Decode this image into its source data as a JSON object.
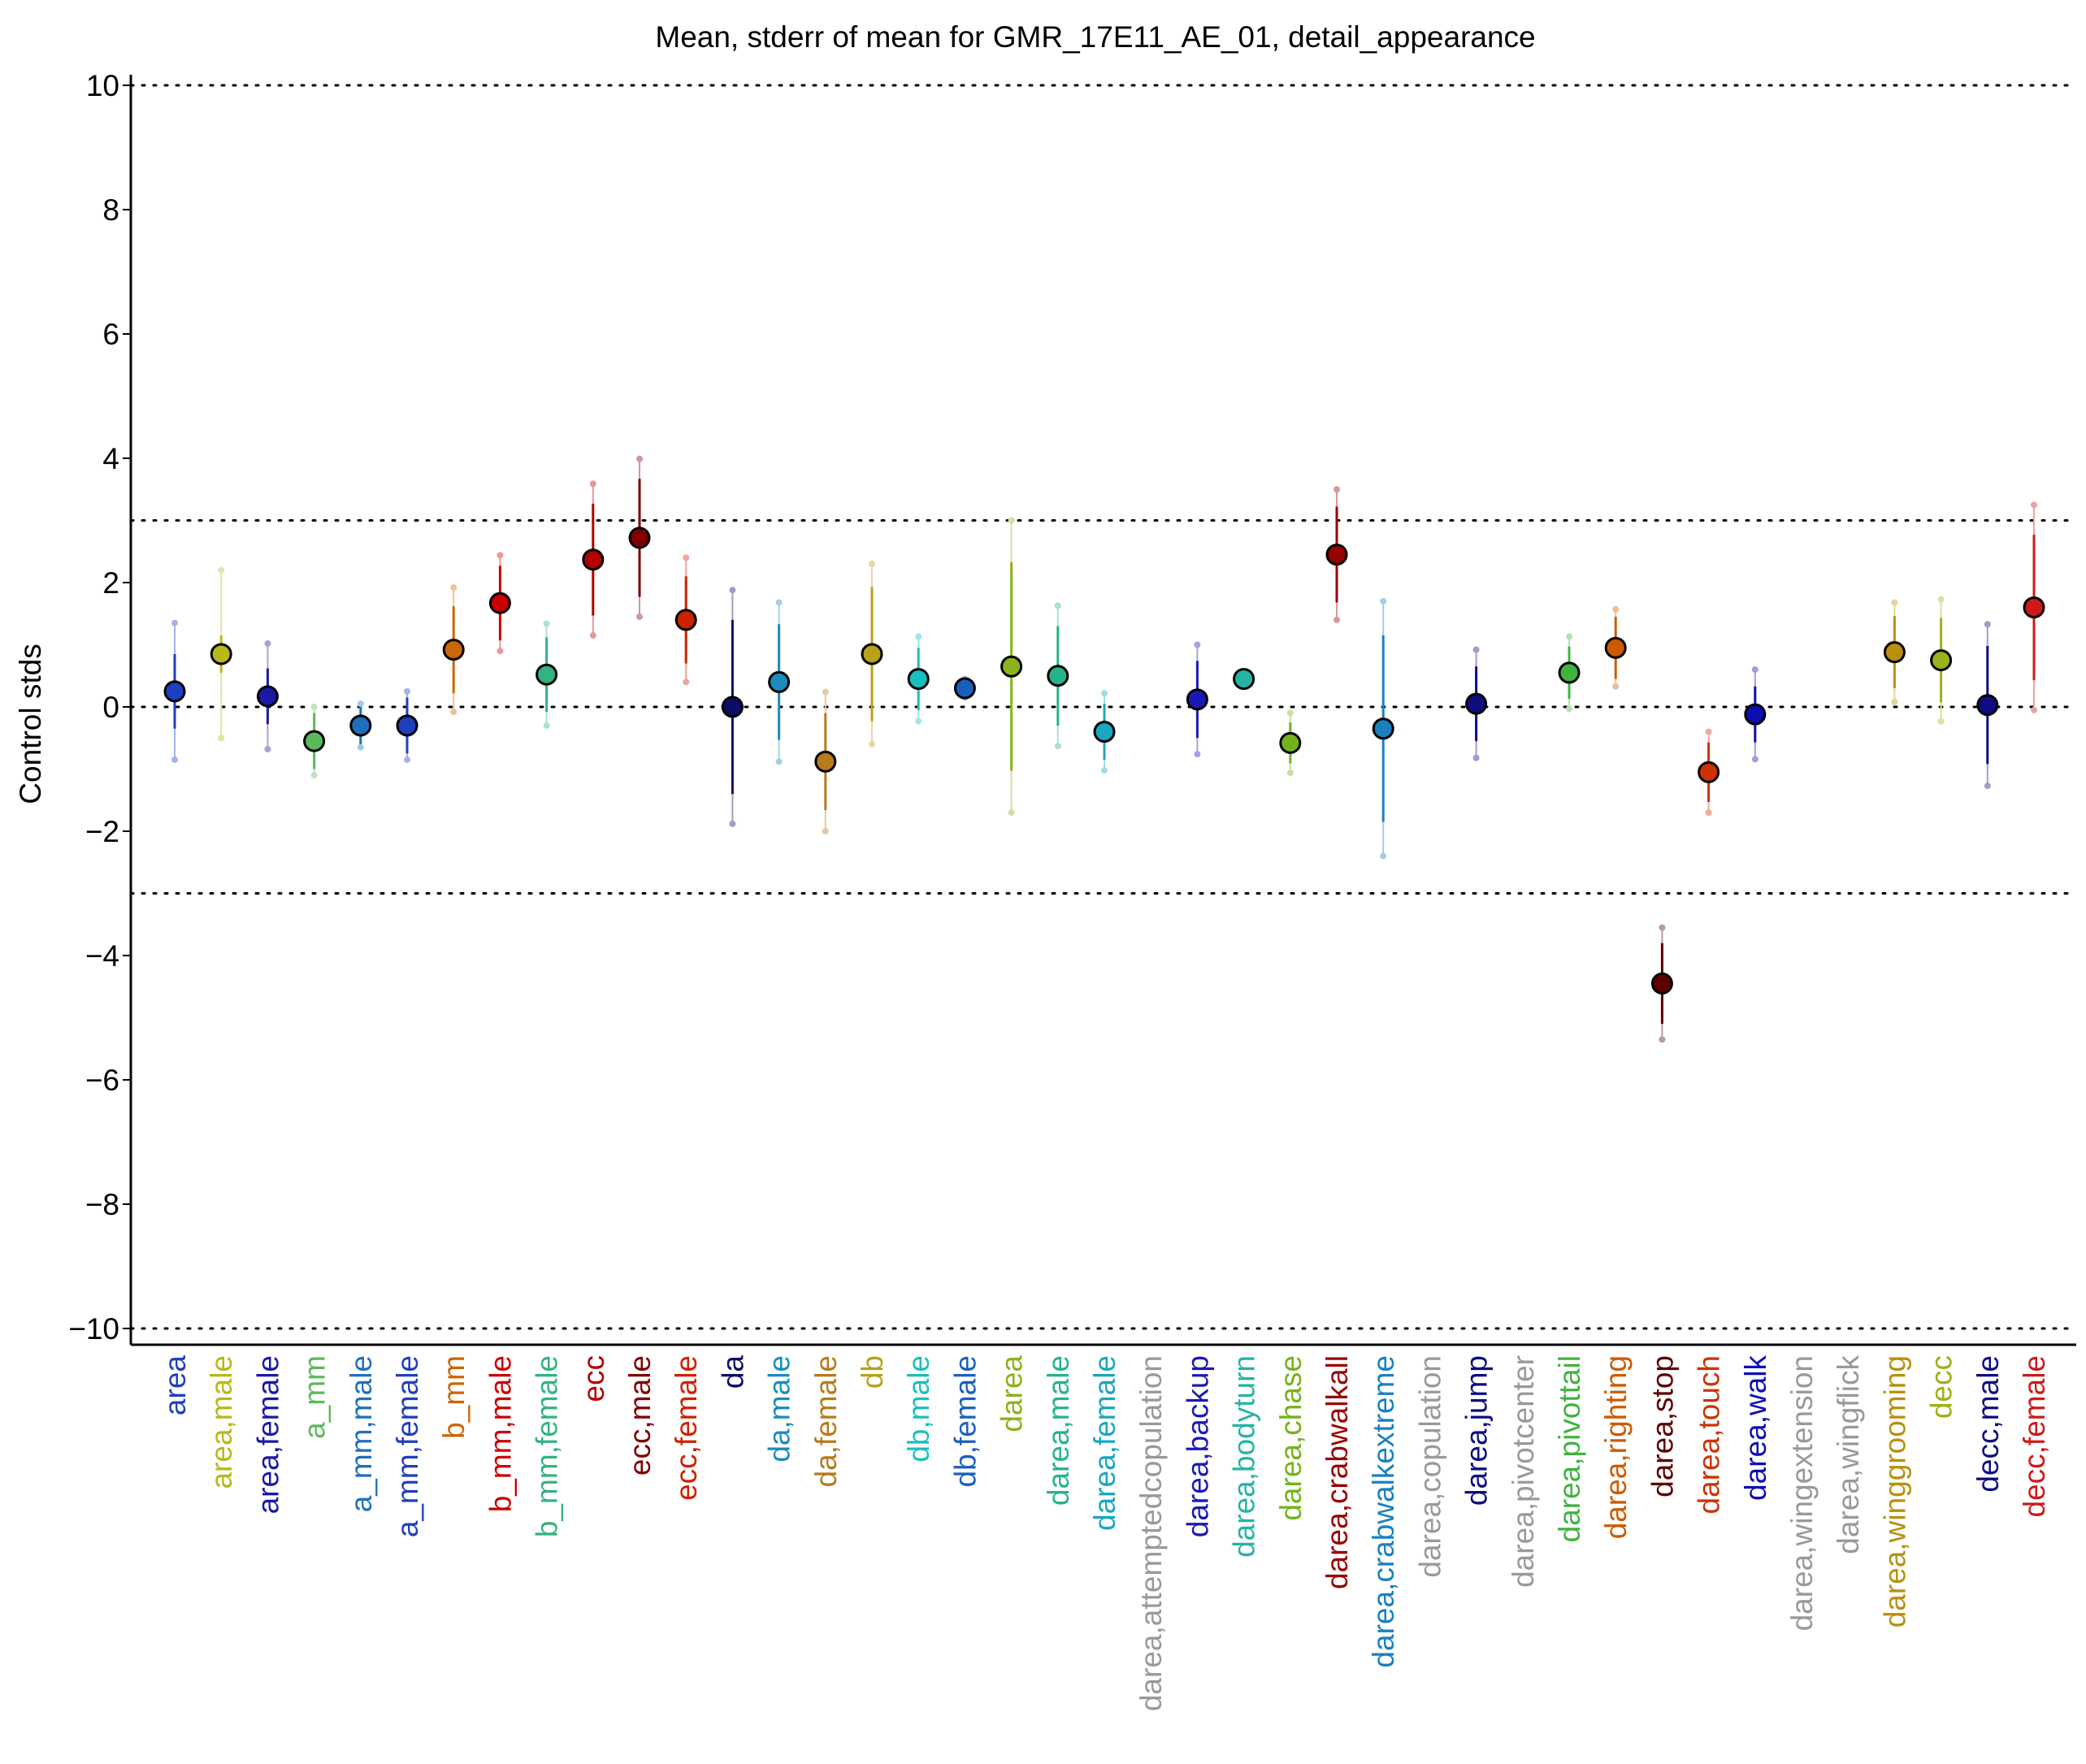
{
  "chart_data": {
    "type": "scatter",
    "title": "Mean, stderr of mean for GMR_17E11_AE_01, detail_appearance",
    "ylabel": "Control stds",
    "xlabel": "",
    "ylim": [
      -10.2,
      10.2
    ],
    "yticks": [
      10,
      8,
      6,
      4,
      2,
      0,
      -2,
      -4,
      -6,
      -8,
      -10
    ],
    "ytick_labels": [
      "10",
      "8",
      "6",
      "4",
      "2",
      "0",
      "−2",
      "−4",
      "−6",
      "−8",
      "−10"
    ],
    "reference_lines": [
      10,
      3,
      0,
      -3,
      -10
    ],
    "grid": false,
    "categories": [
      {
        "label": "area",
        "color": "#1f3fbf",
        "mean": 0.25,
        "se": 0.6,
        "whisker": 1.1
      },
      {
        "label": "area,male",
        "color": "#b8b81a",
        "mean": 0.85,
        "se": 0.3,
        "whisker": 1.35
      },
      {
        "label": "area,female",
        "color": "#1a1aa6",
        "mean": 0.17,
        "se": 0.45,
        "whisker": 0.85
      },
      {
        "label": "a_mm",
        "color": "#5cb85c",
        "mean": -0.55,
        "se": 0.45,
        "whisker": 0.55
      },
      {
        "label": "a_mm,male",
        "color": "#1f6fbf",
        "mean": -0.3,
        "se": 0.3,
        "whisker": 0.35
      },
      {
        "label": "a_mm,female",
        "color": "#1f3fbf",
        "mean": -0.3,
        "se": 0.45,
        "whisker": 0.55
      },
      {
        "label": "b_mm",
        "color": "#cc6600",
        "mean": 0.92,
        "se": 0.7,
        "whisker": 1.0
      },
      {
        "label": "b_mm,male",
        "color": "#cc0000",
        "mean": 1.67,
        "se": 0.6,
        "whisker": 0.77
      },
      {
        "label": "b_mm,female",
        "color": "#33b380",
        "mean": 0.52,
        "se": 0.6,
        "whisker": 0.82
      },
      {
        "label": "ecc",
        "color": "#b30000",
        "mean": 2.37,
        "se": 0.9,
        "whisker": 1.22
      },
      {
        "label": "ecc,male",
        "color": "#800000",
        "mean": 2.72,
        "se": 0.95,
        "whisker": 1.27
      },
      {
        "label": "ecc,female",
        "color": "#cc2200",
        "mean": 1.4,
        "se": 0.7,
        "whisker": 1.0
      },
      {
        "label": "da",
        "color": "#0d0d66",
        "mean": 0.0,
        "se": 1.4,
        "whisker": 1.88
      },
      {
        "label": "da,male",
        "color": "#1a8cbf",
        "mean": 0.4,
        "se": 0.93,
        "whisker": 1.28
      },
      {
        "label": "da,female",
        "color": "#b87a1a",
        "mean": -0.88,
        "se": 0.78,
        "whisker": 1.12
      },
      {
        "label": "db",
        "color": "#b8a21a",
        "mean": 0.85,
        "se": 1.08,
        "whisker": 1.45
      },
      {
        "label": "db,male",
        "color": "#1abfbf",
        "mean": 0.45,
        "se": 0.5,
        "whisker": 0.68
      },
      {
        "label": "db,female",
        "color": "#1a5fbf",
        "mean": 0.3,
        "se": 0.12,
        "whisker": 0.15
      },
      {
        "label": "darea",
        "color": "#8cb31a",
        "mean": 0.65,
        "se": 1.68,
        "whisker": 2.35
      },
      {
        "label": "darea,male",
        "color": "#26b38c",
        "mean": 0.5,
        "se": 0.8,
        "whisker": 1.13
      },
      {
        "label": "darea,female",
        "color": "#1aa6bf",
        "mean": -0.4,
        "se": 0.45,
        "whisker": 0.62
      },
      {
        "label": "darea,attemptedcopulation",
        "color": "#999999",
        "mean": null,
        "se": null,
        "whisker": null
      },
      {
        "label": "darea,backup",
        "color": "#1a1ab3",
        "mean": 0.12,
        "se": 0.62,
        "whisker": 0.88
      },
      {
        "label": "darea,bodyturn",
        "color": "#26b3a6",
        "mean": 0.45,
        "se": 0.05,
        "whisker": 0.07
      },
      {
        "label": "darea,chase",
        "color": "#73b31a",
        "mean": -0.58,
        "se": 0.33,
        "whisker": 0.48
      },
      {
        "label": "darea,crabwalkall",
        "color": "#990000",
        "mean": 2.45,
        "se": 0.77,
        "whisker": 1.05
      },
      {
        "label": "darea,crabwalkextreme",
        "color": "#1a80bf",
        "mean": -0.35,
        "se": 1.5,
        "whisker": 2.05
      },
      {
        "label": "darea,copulation",
        "color": "#999999",
        "mean": null,
        "se": null,
        "whisker": null
      },
      {
        "label": "darea,jump",
        "color": "#0d0d80",
        "mean": 0.05,
        "se": 0.6,
        "whisker": 0.87
      },
      {
        "label": "darea,pivotcenter",
        "color": "#999999",
        "mean": null,
        "se": null,
        "whisker": null
      },
      {
        "label": "darea,pivottail",
        "color": "#40b340",
        "mean": 0.55,
        "se": 0.42,
        "whisker": 0.58
      },
      {
        "label": "darea,righting",
        "color": "#cc5a00",
        "mean": 0.95,
        "se": 0.5,
        "whisker": 0.62
      },
      {
        "label": "darea,stop",
        "color": "#5c0000",
        "mean": -4.45,
        "se": 0.65,
        "whisker": 0.9
      },
      {
        "label": "darea,touch",
        "color": "#cc3300",
        "mean": -1.05,
        "se": 0.48,
        "whisker": 0.65
      },
      {
        "label": "darea,walk",
        "color": "#0d0db3",
        "mean": -0.12,
        "se": 0.45,
        "whisker": 0.72
      },
      {
        "label": "darea,wingextension",
        "color": "#999999",
        "mean": null,
        "se": null,
        "whisker": null
      },
      {
        "label": "darea,wingflick",
        "color": "#999999",
        "mean": null,
        "se": null,
        "whisker": null
      },
      {
        "label": "darea,winggrooming",
        "color": "#b8900d",
        "mean": 0.88,
        "se": 0.58,
        "whisker": 0.8
      },
      {
        "label": "decc",
        "color": "#99b31a",
        "mean": 0.75,
        "se": 0.68,
        "whisker": 0.98
      },
      {
        "label": "decc,male",
        "color": "#0d0d80",
        "mean": 0.03,
        "se": 0.95,
        "whisker": 1.3
      },
      {
        "label": "decc,female",
        "color": "#cc1a1a",
        "mean": 1.6,
        "se": 1.17,
        "whisker": 1.65
      }
    ]
  }
}
